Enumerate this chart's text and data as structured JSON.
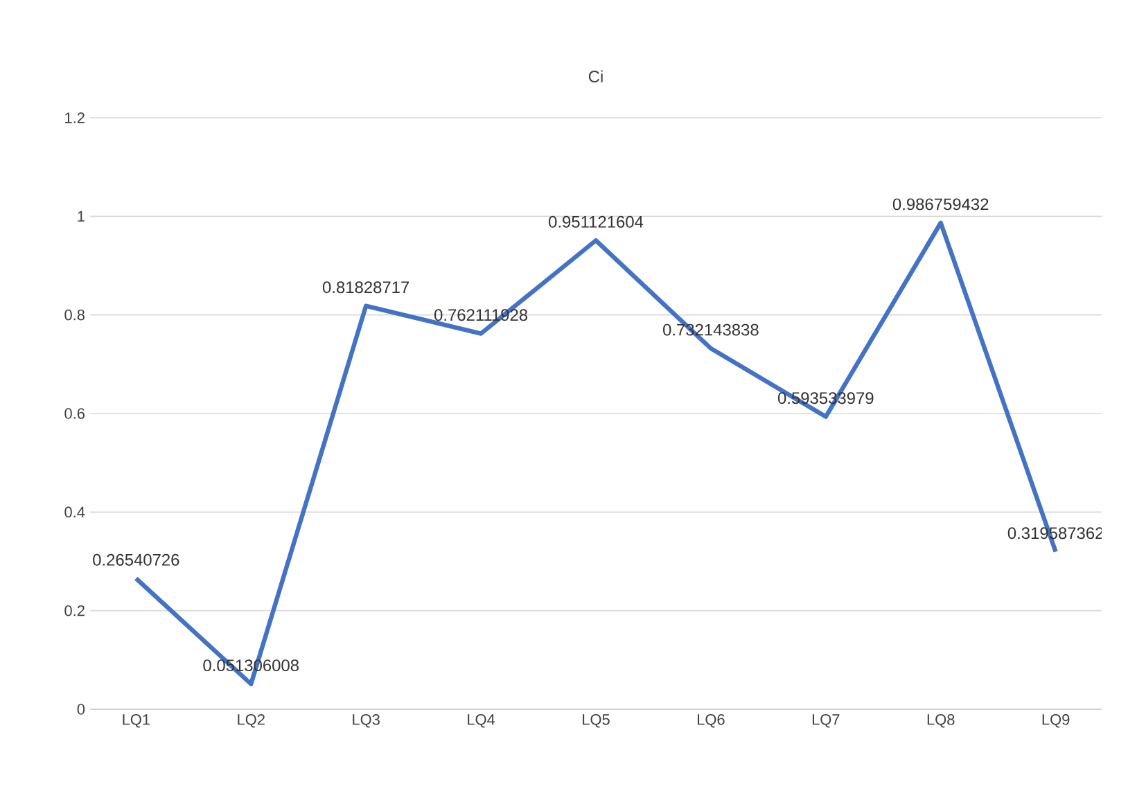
{
  "chart_data": {
    "type": "line",
    "title": "Ci",
    "categories": [
      "LQ1",
      "LQ2",
      "LQ3",
      "LQ4",
      "LQ5",
      "LQ6",
      "LQ7",
      "LQ8",
      "LQ9"
    ],
    "series": [
      {
        "color": "#4472c4",
        "values": [
          0.26540726,
          0.051306008,
          0.81828717,
          0.762111928,
          0.951121604,
          0.732143838,
          0.593533979,
          0.986759432,
          0.319587362
        ]
      }
    ],
    "ylim": [
      0,
      1.2
    ],
    "yticks": [
      0,
      0.2,
      0.4,
      0.6,
      0.8,
      1,
      1.2
    ],
    "grid": "y",
    "data_labels": true,
    "marker": "none",
    "line_style": "solid",
    "legend": false
  }
}
